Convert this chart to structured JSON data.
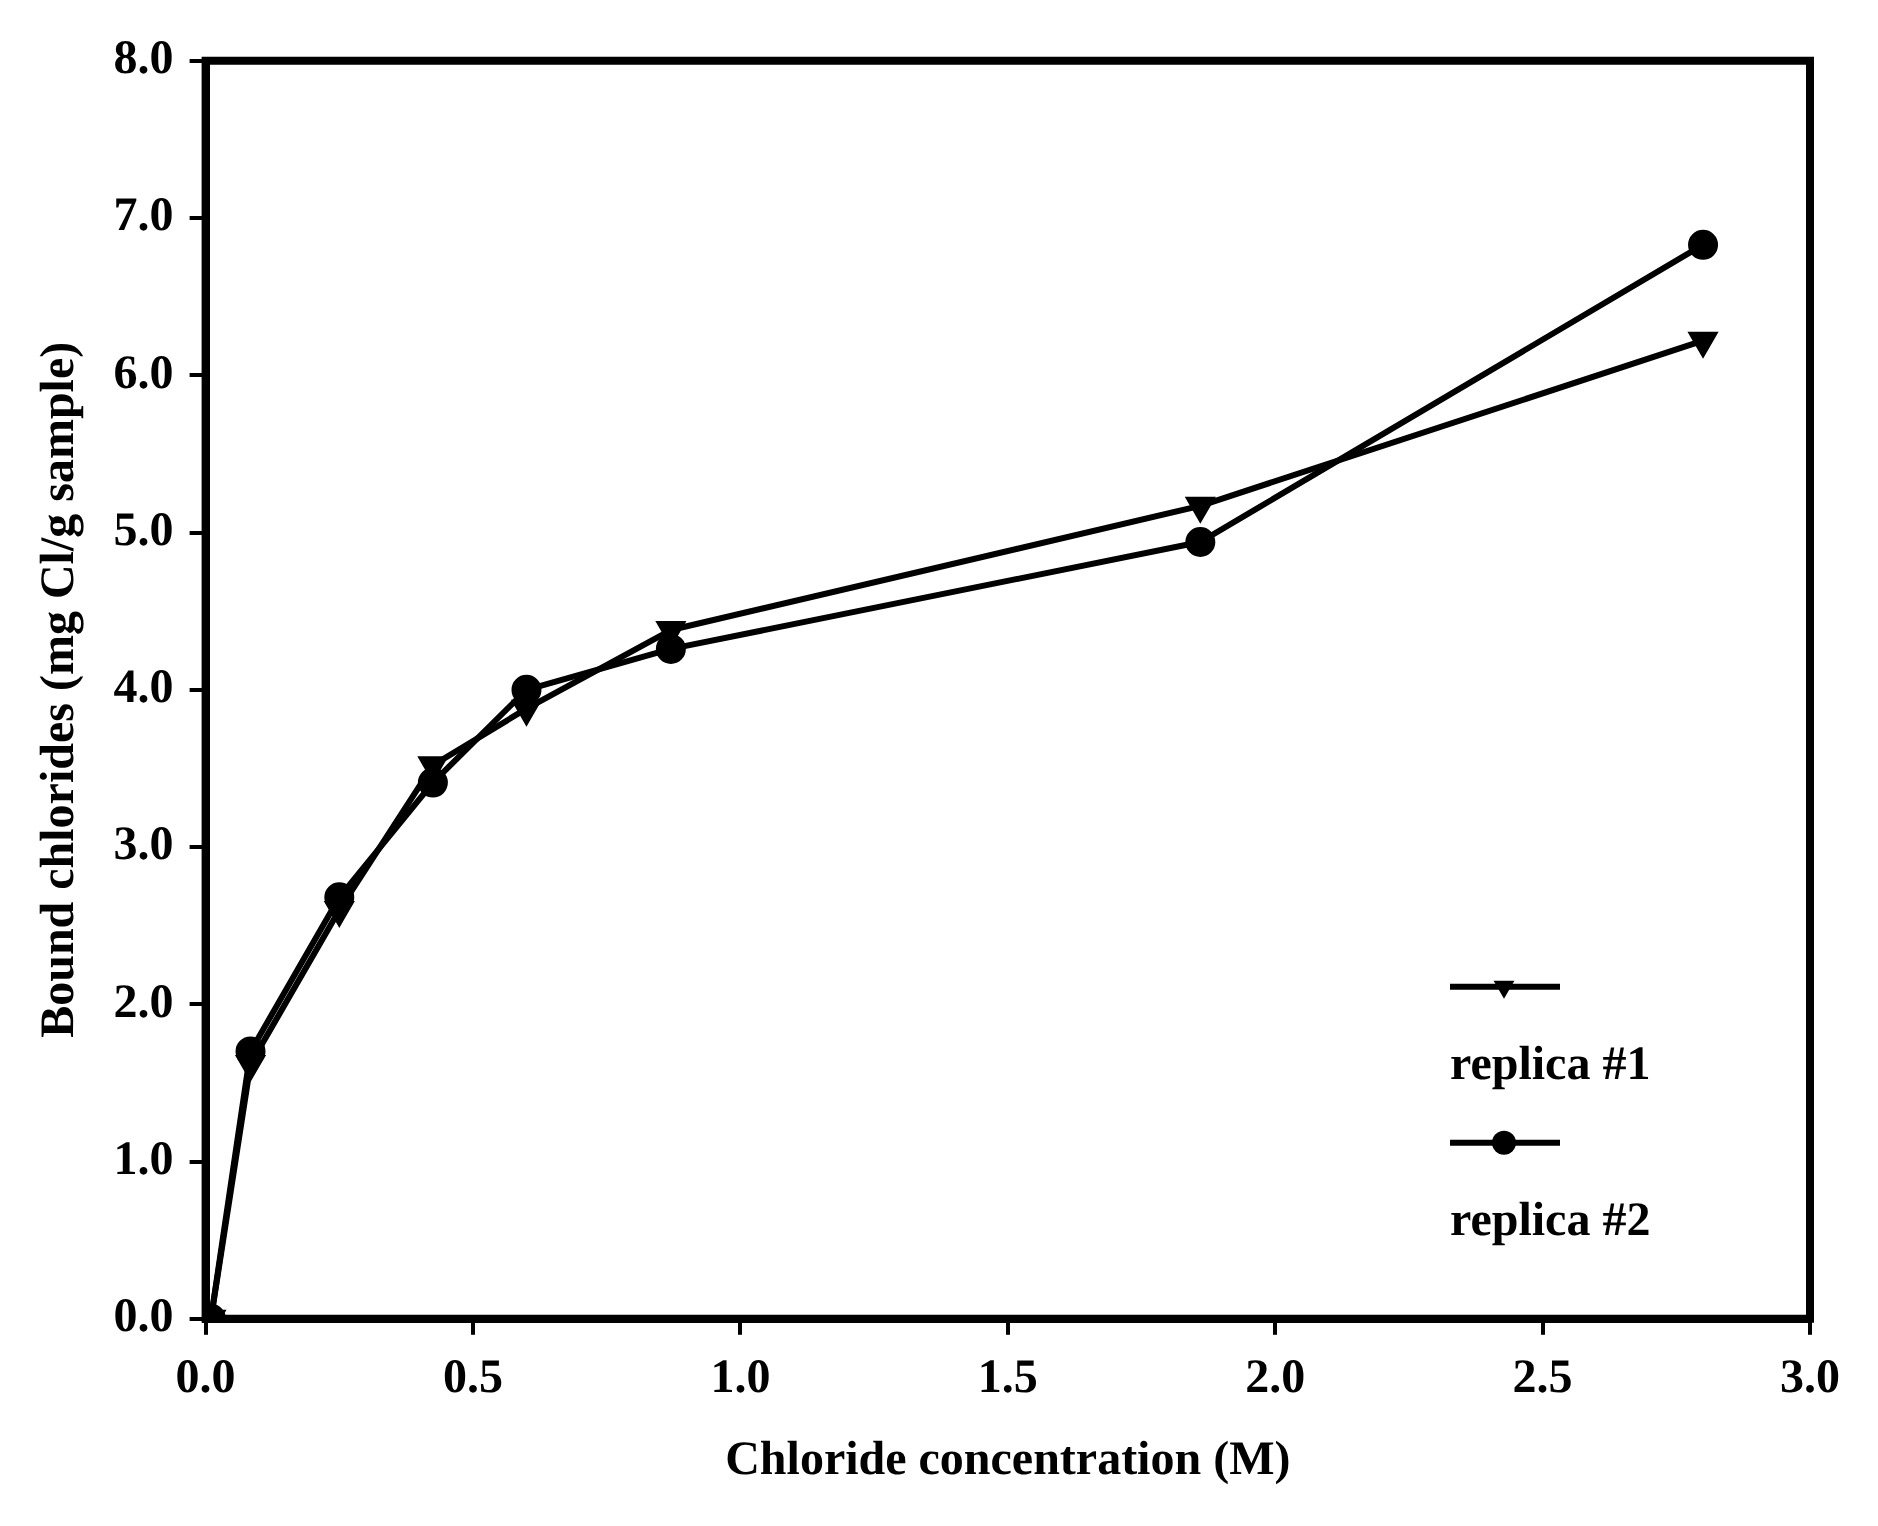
{
  "chart_data": {
    "type": "line",
    "xlabel": "Chloride concentration (M)",
    "ylabel": "Bound chlorides (mg Cl/g sample)",
    "xlim": [
      0,
      3
    ],
    "xticks": [
      {
        "value": 0,
        "label": "0.0"
      },
      {
        "value": 0.5,
        "label": "0.5"
      },
      {
        "value": 1,
        "label": "1.0"
      },
      {
        "value": 1.5,
        "label": "1.5"
      },
      {
        "value": 2,
        "label": "2.0"
      },
      {
        "value": 2.5,
        "label": "2.5"
      },
      {
        "value": 3,
        "label": "3.0"
      }
    ],
    "ylim": [
      0,
      8
    ],
    "yticks": [
      {
        "value": 0,
        "label": "0.0"
      },
      {
        "value": 1,
        "label": "1.0"
      },
      {
        "value": 2,
        "label": "2.0"
      },
      {
        "value": 3,
        "label": "3.0"
      },
      {
        "value": 4,
        "label": "4.0"
      },
      {
        "value": 5,
        "label": "5.0"
      },
      {
        "value": 6,
        "label": "6.0"
      },
      {
        "value": 7,
        "label": "7.0"
      },
      {
        "value": 8,
        "label": "8.0"
      }
    ],
    "grid": false,
    "legend": "bottom right",
    "line_style": "solid",
    "series": [
      {
        "name": "replica #1",
        "color": "#000000",
        "marker": "triangle",
        "x": [
          0.01,
          0.084,
          0.25,
          0.425,
          0.6,
          0.87,
          1.86,
          2.8
        ],
        "values": [
          0,
          1.62,
          2.6,
          3.52,
          3.88,
          4.38,
          5.17,
          6.22
        ]
      },
      {
        "name": "replica #2",
        "color": "#000000",
        "marker": "circle",
        "x": [
          0.01,
          0.084,
          0.25,
          0.425,
          0.6,
          0.87,
          1.86,
          2.8
        ],
        "values": [
          0,
          1.7,
          2.68,
          3.41,
          4.0,
          4.26,
          4.94,
          6.83
        ]
      }
    ]
  }
}
